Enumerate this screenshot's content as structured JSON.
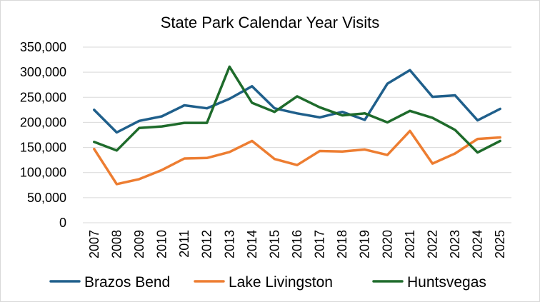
{
  "chart_data": {
    "type": "line",
    "title": "State Park Calendar Year Visits",
    "xlabel": "",
    "ylabel": "",
    "x": [
      "2007",
      "2008",
      "2009",
      "2010",
      "2011",
      "2012",
      "2013",
      "2014",
      "2015",
      "2016",
      "2017",
      "2018",
      "2019",
      "2020",
      "2021",
      "2022",
      "2023",
      "2024",
      "2025"
    ],
    "ylim": [
      0,
      350000
    ],
    "yticks": [
      0,
      50000,
      100000,
      150000,
      200000,
      250000,
      300000,
      350000
    ],
    "ytick_labels": [
      "0",
      "50,000",
      "100,000",
      "150,000",
      "200,000",
      "250,000",
      "300,000",
      "350,000"
    ],
    "grid": "horizontal",
    "legend_position": "bottom",
    "series": [
      {
        "name": "Brazos Bend",
        "color": "#1f5f8b",
        "values": [
          225000,
          180000,
          203000,
          212000,
          234000,
          228000,
          247000,
          272000,
          228000,
          218000,
          210000,
          221000,
          205000,
          277000,
          304000,
          251000,
          254000,
          204000,
          227000
        ]
      },
      {
        "name": "Lake Livingston",
        "color": "#ed7d31",
        "values": [
          147000,
          77000,
          87000,
          105000,
          128000,
          129000,
          141000,
          163000,
          127000,
          115000,
          143000,
          142000,
          146000,
          135000,
          183000,
          118000,
          138000,
          167000,
          170000
        ]
      },
      {
        "name": "Huntsvegas",
        "color": "#1e6b2b",
        "values": [
          161000,
          144000,
          189000,
          192000,
          199000,
          199000,
          311000,
          239000,
          221000,
          252000,
          230000,
          214000,
          218000,
          200000,
          223000,
          209000,
          185000,
          140000,
          163000
        ]
      }
    ]
  }
}
